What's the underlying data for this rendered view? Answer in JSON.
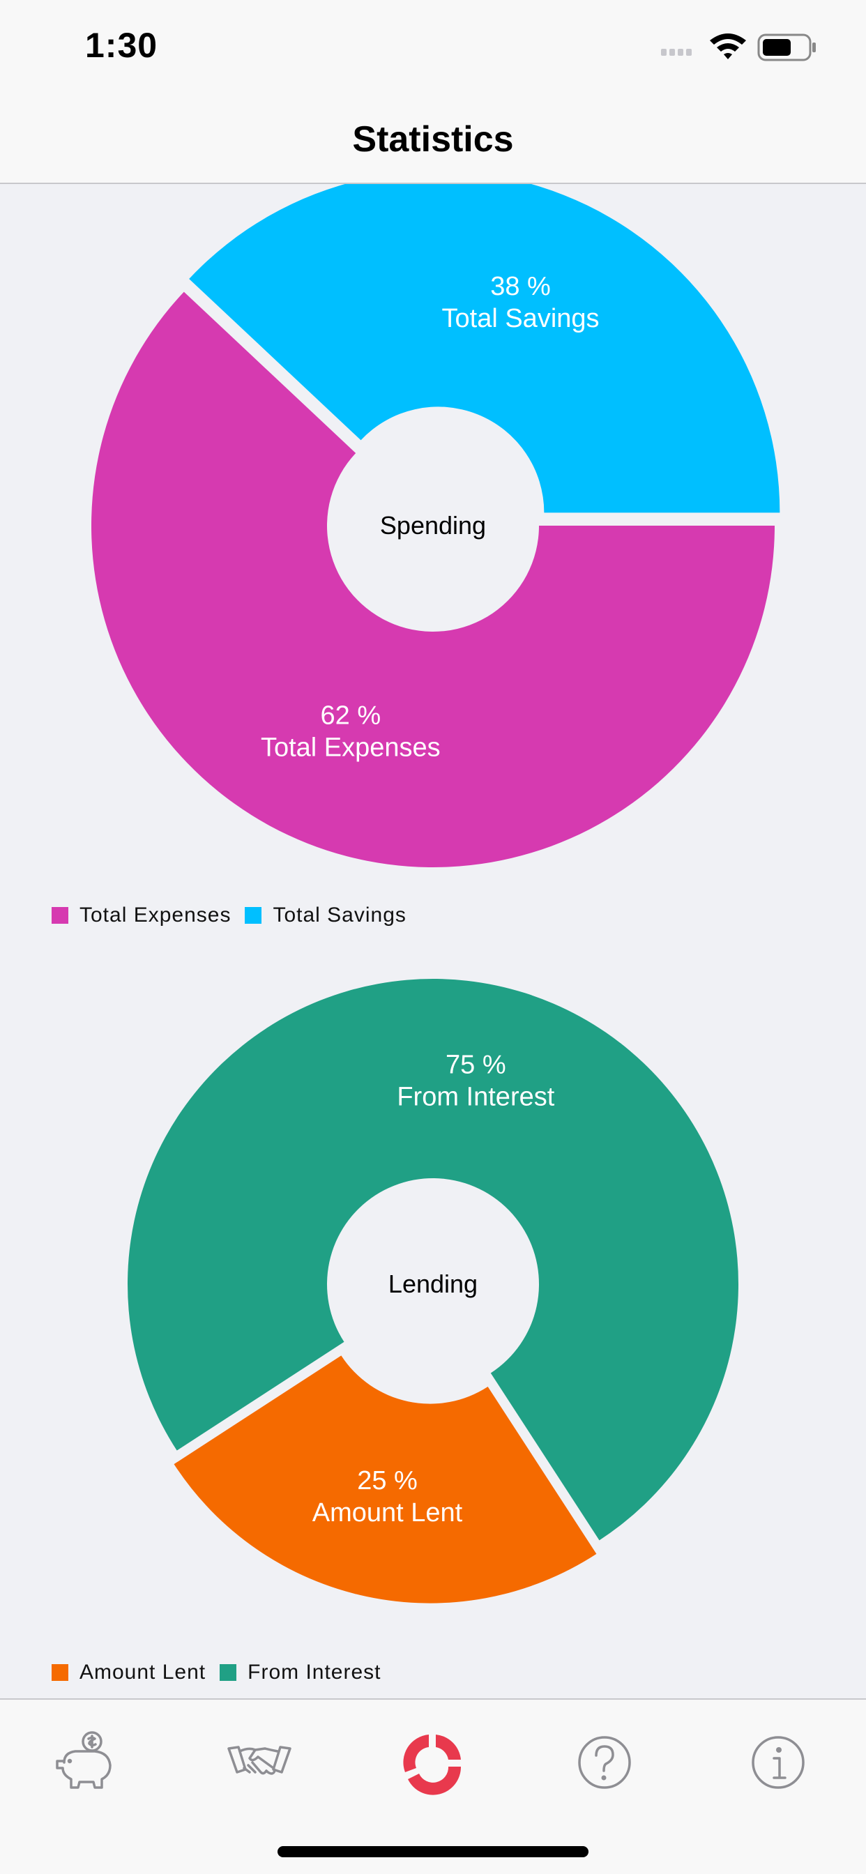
{
  "status_bar": {
    "time": "1:30",
    "icons": [
      "signal-icon",
      "wifi-icon",
      "battery-icon"
    ]
  },
  "nav": {
    "title": "Statistics"
  },
  "colors": {
    "expenses": "#d63ab0",
    "savings": "#00bfff",
    "amount_lent": "#f56a00",
    "from_interest": "#20a085",
    "tab_active": "#e8394d",
    "tab_inactive": "#8e8e93"
  },
  "chart_data": [
    {
      "type": "pie",
      "variant": "donut",
      "center_label": "Spending",
      "slices": [
        {
          "label": "Total Expenses",
          "value": 62,
          "value_text": "62 %",
          "color": "#d63ab0"
        },
        {
          "label": "Total Savings",
          "value": 38,
          "value_text": "38 %",
          "color": "#00bfff"
        }
      ],
      "legend": [
        "Total Expenses",
        "Total Savings"
      ],
      "legend_position": "bottom-left"
    },
    {
      "type": "pie",
      "variant": "donut",
      "center_label": "Lending",
      "slices": [
        {
          "label": "Amount Lent",
          "value": 25,
          "value_text": "25 %",
          "color": "#f56a00"
        },
        {
          "label": "From Interest",
          "value": 75,
          "value_text": "75 %",
          "color": "#20a085"
        }
      ],
      "legend": [
        "Amount Lent",
        "From Interest"
      ],
      "legend_position": "bottom-left"
    }
  ],
  "tab_bar": {
    "tabs": [
      {
        "icon": "piggy-bank-icon",
        "active": false
      },
      {
        "icon": "handshake-icon",
        "active": false
      },
      {
        "icon": "pie-chart-icon",
        "active": true
      },
      {
        "icon": "help-icon",
        "active": false
      },
      {
        "icon": "info-icon",
        "active": false
      }
    ]
  }
}
